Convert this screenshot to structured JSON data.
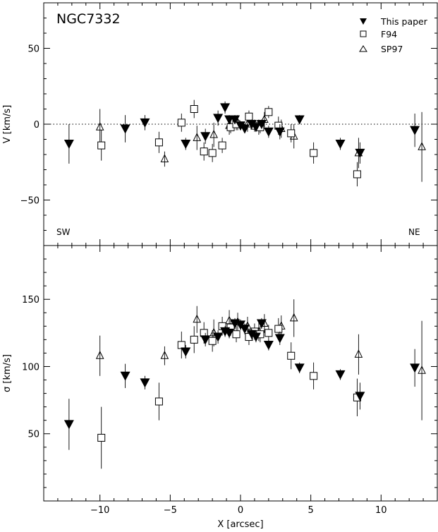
{
  "chart_data": [
    {
      "type": "scatter",
      "title": "NGC7332",
      "ylabel": "V [km/s]",
      "xlabel": "X [arcsec]",
      "xlim": [
        -14,
        14
      ],
      "ylim": [
        -80,
        80
      ],
      "xticks": [
        -10,
        -5,
        0,
        5,
        10
      ],
      "yticks": [
        -50,
        0,
        50
      ],
      "reference_line": 0,
      "annotations": [
        "SW",
        "NE"
      ],
      "legend_position": "top-right",
      "series": [
        {
          "name": "This paper",
          "marker": "filled-triangle-down",
          "x": [
            -12.2,
            -8.2,
            -6.8,
            -3.9,
            -2.5,
            -1.6,
            -1.1,
            -0.8,
            -0.4,
            0,
            0.3,
            0.8,
            1.1,
            1.5,
            2,
            2.8,
            4.2,
            7.1,
            8.5,
            12.4
          ],
          "y": [
            -13,
            -3,
            1,
            -13,
            -8,
            4,
            11,
            3,
            3,
            -1,
            -3,
            0,
            -2,
            0,
            -5,
            -5,
            3,
            -13,
            -19,
            -4
          ],
          "err": [
            13,
            9,
            5,
            4,
            5,
            5,
            4,
            3,
            3,
            3,
            3,
            3,
            3,
            3,
            4,
            5,
            3,
            4,
            7,
            11
          ]
        },
        {
          "name": "F94",
          "marker": "open-square",
          "x": [
            -9.9,
            -5.8,
            -4.2,
            -3.3,
            -2.6,
            -2,
            -1.3,
            -0.7,
            -0.3,
            0.6,
            1,
            1.4,
            2,
            2.7,
            3.6,
            5.2,
            8.3
          ],
          "y": [
            -14,
            -12,
            1,
            10,
            -18,
            -19,
            -14,
            -2,
            0,
            5,
            -1,
            -2,
            8,
            -1,
            -6,
            -19,
            -33
          ],
          "err": [
            10,
            7,
            6,
            6,
            6,
            6,
            5,
            4,
            4,
            4,
            4,
            4,
            4,
            6,
            6,
            7,
            8
          ]
        },
        {
          "name": "SP97",
          "marker": "open-triangle-up",
          "x": [
            -10,
            -5.4,
            -3.1,
            -1.9,
            -0.8,
            -0.2,
            0.5,
            1.3,
            1.7,
            2.9,
            3.8,
            8.4,
            12.9
          ],
          "y": [
            -2,
            -23,
            -9,
            -7,
            -1,
            1,
            0,
            -2,
            3,
            -3,
            -8,
            -19,
            -15
          ],
          "err": [
            12,
            5,
            8,
            8,
            6,
            5,
            5,
            5,
            5,
            6,
            8,
            10,
            23
          ]
        }
      ]
    },
    {
      "type": "scatter",
      "ylabel": "σ [km/s]",
      "xlabel": "X [arcsec]",
      "xlim": [
        -14,
        14
      ],
      "ylim": [
        0,
        190
      ],
      "xticks": [
        -10,
        -5,
        0,
        5,
        10
      ],
      "yticks": [
        50,
        100,
        150
      ],
      "series": [
        {
          "name": "This paper",
          "marker": "filled-triangle-down",
          "x": [
            -12.2,
            -8.2,
            -6.8,
            -3.9,
            -2.5,
            -1.6,
            -1.1,
            -0.8,
            -0.4,
            0,
            0.3,
            0.8,
            1.1,
            1.5,
            2,
            2.8,
            4.2,
            7.1,
            8.5,
            12.4
          ],
          "y": [
            57,
            93,
            88,
            111,
            120,
            122,
            126,
            125,
            132,
            131,
            128,
            124,
            122,
            132,
            116,
            121,
            99,
            94,
            78,
            99
          ],
          "err": [
            19,
            9,
            5,
            5,
            5,
            5,
            4,
            4,
            4,
            4,
            4,
            4,
            4,
            4,
            4,
            5,
            4,
            4,
            10,
            14
          ]
        },
        {
          "name": "F94",
          "marker": "open-square",
          "x": [
            -9.9,
            -5.8,
            -4.2,
            -3.3,
            -2.6,
            -2,
            -1.3,
            -0.7,
            -0.3,
            0.6,
            1,
            1.4,
            2,
            2.7,
            3.6,
            5.2,
            8.3
          ],
          "y": [
            47,
            74,
            116,
            120,
            125,
            119,
            130,
            129,
            124,
            122,
            126,
            124,
            125,
            128,
            108,
            93,
            77
          ],
          "err": [
            23,
            14,
            10,
            10,
            8,
            8,
            7,
            6,
            6,
            6,
            6,
            6,
            6,
            8,
            10,
            10,
            14
          ]
        },
        {
          "name": "SP97",
          "marker": "open-triangle-up",
          "x": [
            -10,
            -5.4,
            -3.1,
            -1.9,
            -0.8,
            -0.2,
            0.5,
            1.3,
            1.7,
            2.9,
            3.8,
            8.4,
            12.9
          ],
          "y": [
            108,
            108,
            135,
            125,
            134,
            133,
            130,
            126,
            132,
            130,
            136,
            109,
            97
          ],
          "err": [
            15,
            7,
            10,
            10,
            8,
            7,
            7,
            7,
            7,
            8,
            14,
            15,
            37
          ]
        }
      ]
    }
  ]
}
